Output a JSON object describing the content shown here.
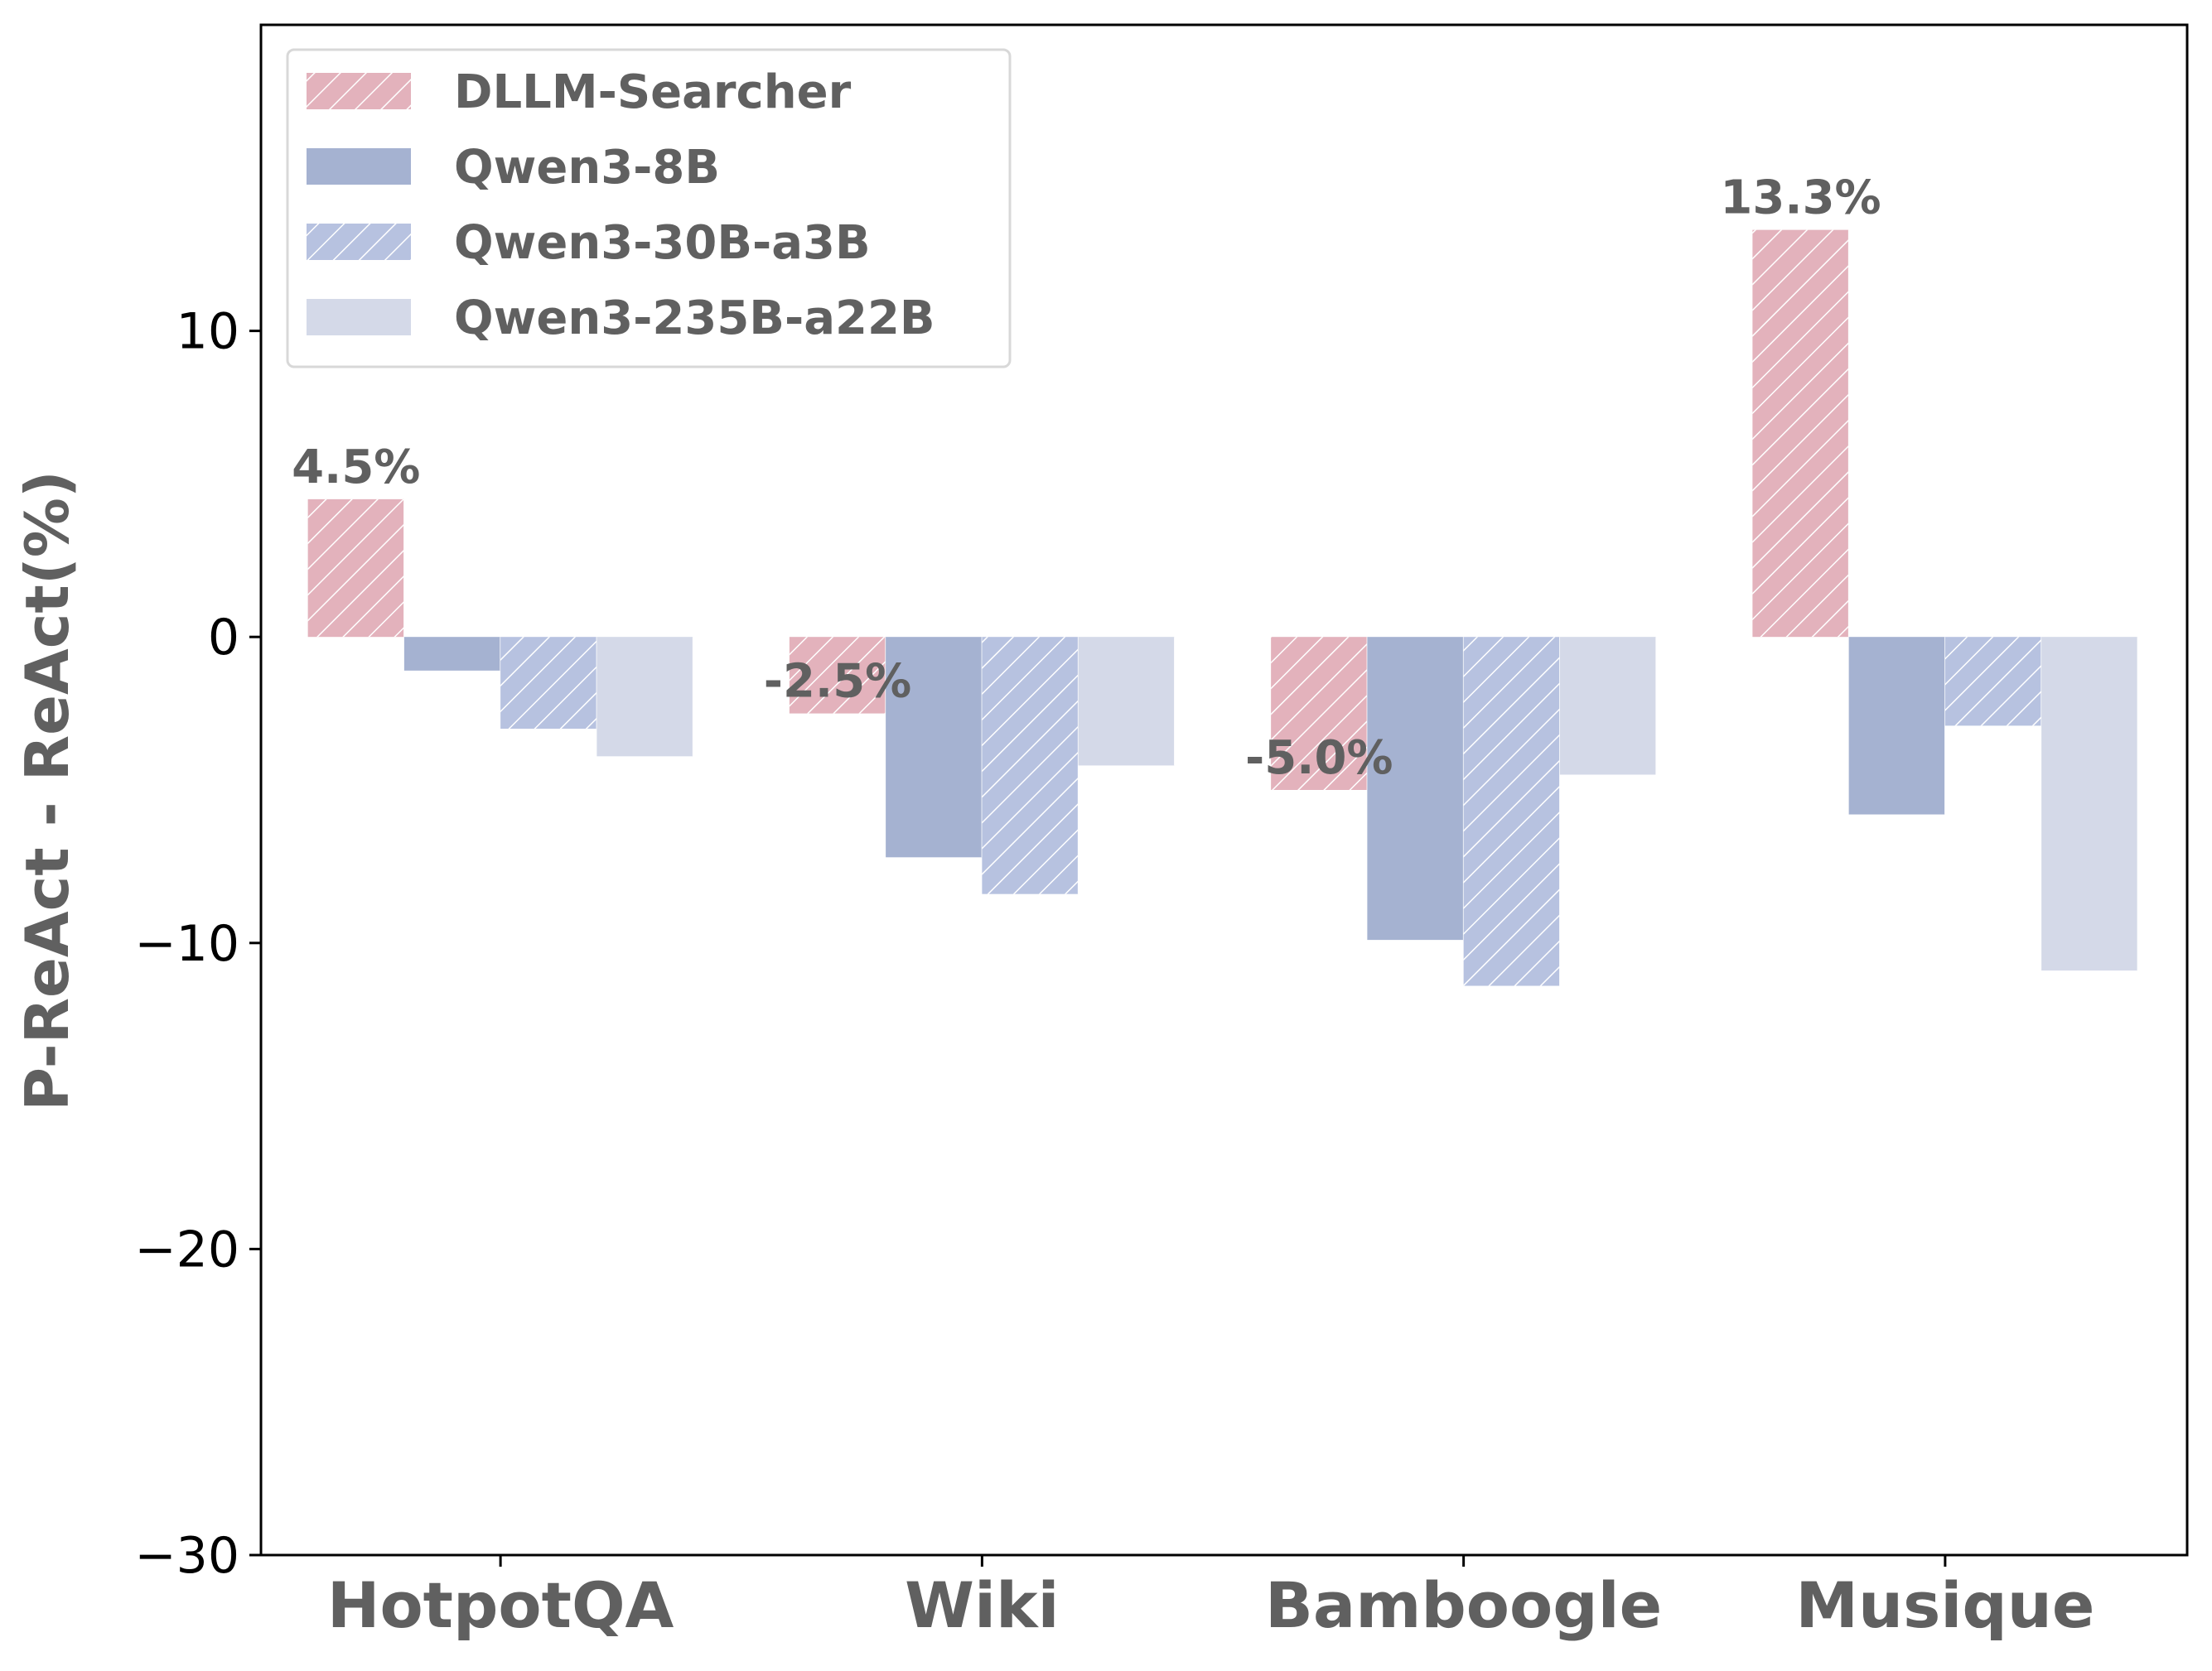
{
  "chart_data": {
    "type": "bar",
    "categories": [
      "HotpotQA",
      "Wiki",
      "Bamboogle",
      "Musique"
    ],
    "series": [
      {
        "name": "DLLM-Searcher",
        "values": [
          4.5,
          -2.5,
          -5.0,
          13.3
        ],
        "color": "#e3b2bc",
        "hatch": true
      },
      {
        "name": "Qwen3-8B",
        "values": [
          -1.1,
          -7.2,
          -9.9,
          -5.8
        ],
        "color": "#a5b2d1",
        "hatch": false
      },
      {
        "name": "Qwen3-30B-a3B",
        "values": [
          -3.0,
          -8.4,
          -11.4,
          -2.9
        ],
        "color": "#b7c2e0",
        "hatch": true
      },
      {
        "name": "Qwen3-235B-a22B",
        "values": [
          -3.9,
          -4.2,
          -4.5,
          -10.9
        ],
        "color": "#d4d9e8",
        "hatch": false
      }
    ],
    "data_labels": [
      "4.5%",
      "-2.5%",
      "-5.0%",
      "13.3%"
    ],
    "ylabel": "P-ReAct - ReAct(%)",
    "xlabel": "",
    "ylim": [
      -30,
      20
    ],
    "yticks": [
      10,
      0,
      -10,
      -20,
      -30
    ],
    "ytick_labels": [
      "10",
      "0",
      "−10",
      "−20",
      "−30"
    ],
    "legend_position": "top-left",
    "grid": false
  }
}
